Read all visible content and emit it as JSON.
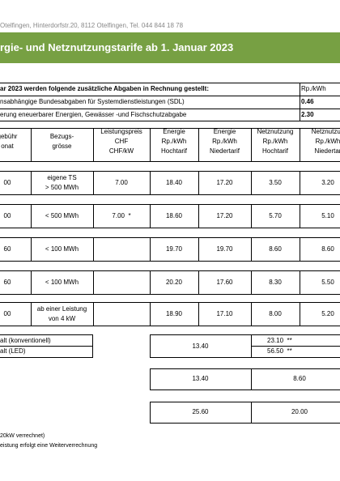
{
  "header": {
    "address": "Otelfingen, Hinterdorfstr.20, 8112 Otelfingen, Tel. 044 844 18 78",
    "title": "rgie- und Netznutzungstarife ab 1. Januar 2023"
  },
  "levies": {
    "heading": "ar 2023 werden folgende zusätzliche Abgaben in Rechnung gestellt:",
    "unit": "Rp./kWh",
    "rows": [
      [
        "nsabhängige Bundesabgaben für Systemdienstleistungen (SDL)",
        "0.46"
      ],
      [
        "erung eneuerbarer Energien, Gewässer -und Fischschutzabgabe",
        "2.30"
      ]
    ]
  },
  "tariffs": {
    "columns": [
      [
        "gebühr",
        "onat"
      ],
      [
        "Bezugs-",
        "grösse"
      ],
      [
        "Leistungspreis",
        "CHF",
        "CHF/kW"
      ],
      [
        "Energie",
        "Rp./kWh",
        "Hochtarif"
      ],
      [
        "Energie",
        "Rp./kWh",
        "Niedertarif"
      ],
      [
        "Netznutzung",
        "Rp./kWh",
        "Hochtarif"
      ],
      [
        "Netznutzun",
        "Rp./kWh",
        "Niedertar"
      ]
    ],
    "rows": [
      [
        [
          "00"
        ],
        [
          "eigene TS",
          "> 500 MWh"
        ],
        [
          "7.00"
        ],
        [
          "18.40"
        ],
        [
          "17.20"
        ],
        [
          "3.50"
        ],
        [
          "3.20"
        ]
      ],
      [
        [
          "00"
        ],
        [
          "< 500 MWh"
        ],
        [
          "7.00  *"
        ],
        [
          "18.60"
        ],
        [
          "17.20"
        ],
        [
          "5.70"
        ],
        [
          "5.10"
        ]
      ],
      [
        [
          "60"
        ],
        [
          "< 100 MWh"
        ],
        [],
        [
          "19.70"
        ],
        [
          "19.70"
        ],
        [
          "8.60"
        ],
        [
          "8.60"
        ]
      ],
      [
        [
          "60"
        ],
        [
          "< 100 MWh"
        ],
        [],
        [
          "20.20"
        ],
        [
          "17.60"
        ],
        [
          "8.30"
        ],
        [
          "5.50"
        ]
      ],
      [
        [
          "00"
        ],
        [
          "ab einer Leistung",
          "von 4 kW"
        ],
        [],
        [
          "18.90"
        ],
        [
          "17.10"
        ],
        [
          "8.00"
        ],
        [
          "5.20"
        ]
      ]
    ]
  },
  "lighting": {
    "labels": [
      "alt (konventionell)",
      "alt (LED)"
    ],
    "energy": "13.40",
    "network": [
      "23.10  **",
      "56.50  **"
    ]
  },
  "extra_rows": [
    [
      "13.40",
      "8.60"
    ],
    [
      "25.60",
      "20.00"
    ]
  ],
  "footnotes": [
    "20kW verrechnet)",
    "eistung erfolgt eine Weiterverrechnung"
  ]
}
